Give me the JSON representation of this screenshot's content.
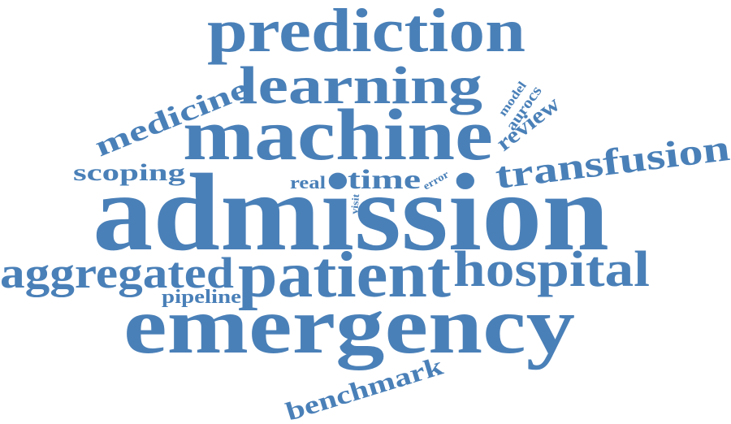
{
  "colors": {
    "word": "#4a80b8",
    "background": "#ffffff"
  },
  "words": {
    "prediction": "prediction",
    "learning": "learning",
    "medicine": "medicine",
    "machine": "machine",
    "model": "model",
    "aurocs": "aurocs",
    "review": "review",
    "transfusion": "transfusion",
    "scoping": "scoping",
    "real": "real",
    "time": "time",
    "error": "error",
    "visit": "visit",
    "admission": "admission",
    "aggregated": "aggregated",
    "patient": "patient",
    "hospital": "hospital",
    "pipeline": "pipeline",
    "emergency": "emergency",
    "benchmark": "benchmark"
  }
}
